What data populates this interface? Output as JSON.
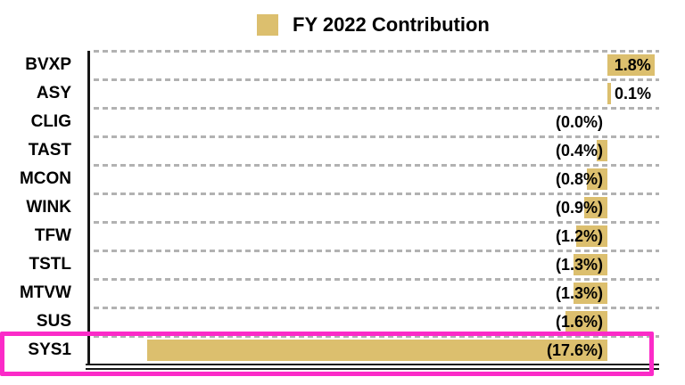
{
  "legend": {
    "label": "FY 2022 Contribution",
    "swatch_color": "#dcbf6e",
    "position": "top-center"
  },
  "chart_data": {
    "type": "bar",
    "orientation": "horizontal",
    "title": "FY 2022 Contribution",
    "categories": [
      "BVXP",
      "ASY",
      "CLIG",
      "TAST",
      "MCON",
      "WINK",
      "TFW",
      "TSTL",
      "MTVW",
      "SUS",
      "SYS1"
    ],
    "values": [
      1.8,
      0.1,
      0.0,
      -0.4,
      -0.8,
      -0.9,
      -1.2,
      -1.3,
      -1.3,
      -1.6,
      -17.6
    ],
    "value_labels": [
      "1.8%",
      "0.1%",
      "(0.0%)",
      "(0.4%)",
      "(0.8%)",
      "(0.9%)",
      "(1.2%)",
      "(1.3%)",
      "(1.3%)",
      "(1.6%)",
      "(17.6%)"
    ],
    "xlabel": "",
    "ylabel": "",
    "xlim": [
      -19.8,
      2.1
    ],
    "grid": "dashed-horizontal-category-separators",
    "bar_color": "#dcbf6e",
    "axis_color": "#161616",
    "gridline_color": "#b2b2b2",
    "highlight": {
      "category": "SYS1",
      "box_color": "#fb2bc8"
    }
  }
}
